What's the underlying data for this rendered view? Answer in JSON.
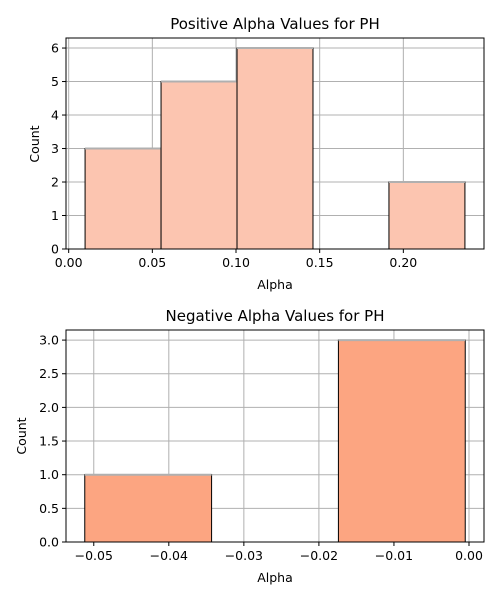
{
  "chart_data": [
    {
      "type": "bar",
      "title": "Positive Alpha Values for PH",
      "xlabel": "Alpha",
      "ylabel": "Count",
      "bins": [
        {
          "start": 0.0098,
          "end": 0.0552,
          "count": 3
        },
        {
          "start": 0.0552,
          "end": 0.1006,
          "count": 5
        },
        {
          "start": 0.1006,
          "end": 0.146,
          "count": 6
        },
        {
          "start": 0.146,
          "end": 0.1914,
          "count": 0
        },
        {
          "start": 0.1914,
          "end": 0.2368,
          "count": 2
        }
      ],
      "xlim": [
        -0.0016,
        0.2482
      ],
      "ylim": [
        0,
        6.3
      ],
      "xticks": [
        0.0,
        0.05,
        0.1,
        0.15,
        0.2
      ],
      "xtick_labels": [
        "0.00",
        "0.05",
        "0.10",
        "0.15",
        "0.20"
      ],
      "yticks": [
        0,
        1,
        2,
        3,
        4,
        5,
        6
      ],
      "ytick_labels": [
        "0",
        "1",
        "2",
        "3",
        "4",
        "5",
        "6"
      ],
      "grid": true,
      "bar_color": "#fcc5b0",
      "edge_color": "#000000"
    },
    {
      "type": "bar",
      "title": "Negative Alpha Values for PH",
      "xlabel": "Alpha",
      "ylabel": "Count",
      "bins": [
        {
          "start": -0.0512,
          "end": -0.0343,
          "count": 1
        },
        {
          "start": -0.0343,
          "end": -0.0174,
          "count": 0
        },
        {
          "start": -0.0174,
          "end": -0.0005,
          "count": 3
        }
      ],
      "xlim": [
        -0.0537,
        0.002
      ],
      "ylim": [
        0,
        3.15
      ],
      "xticks": [
        -0.05,
        -0.04,
        -0.03,
        -0.02,
        -0.01,
        0.0
      ],
      "xtick_labels": [
        "−0.05",
        "−0.04",
        "−0.03",
        "−0.02",
        "−0.01",
        "0.00"
      ],
      "yticks": [
        0,
        0.5,
        1.0,
        1.5,
        2.0,
        2.5,
        3.0
      ],
      "ytick_labels": [
        "0.0",
        "0.5",
        "1.0",
        "1.5",
        "2.0",
        "2.5",
        "3.0"
      ],
      "grid": true,
      "bar_color": "#fca581",
      "edge_color": "#000000"
    }
  ]
}
